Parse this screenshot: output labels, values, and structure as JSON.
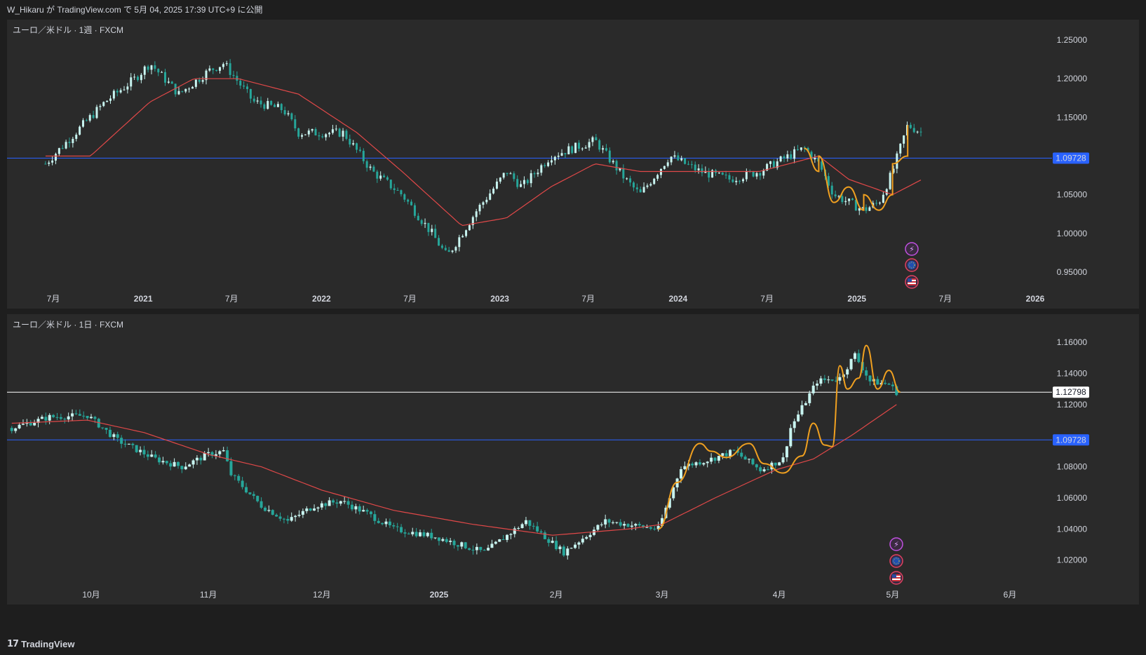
{
  "header": {
    "title": "W_Hikaru が TradingView.com で 5月 04, 2025 17:39 UTC+9 に公開"
  },
  "footer": {
    "logo_mark": "17",
    "logo_text": "TradingView"
  },
  "colors": {
    "up": "#c8f4f0",
    "down": "#26a69a",
    "ma": "#e04848",
    "pattern": "#f0a020",
    "level_line": "#2962ff",
    "price_line": "#ffffff",
    "bg": "#2a2a2a"
  },
  "chart_data": [
    {
      "type": "candlestick",
      "title": "ユーロ／米ドル · 1週 · FXCM",
      "x_ticks": [
        "7月",
        "2021",
        "7月",
        "2022",
        "7月",
        "2023",
        "7月",
        "2024",
        "7月",
        "2025",
        "7月",
        "2026"
      ],
      "y_ticks": [
        "1.25000",
        "1.20000",
        "1.15000",
        "1.05000",
        "1.00000",
        "0.95000"
      ],
      "ylim": [
        0.93,
        1.26
      ],
      "horizontal_level": {
        "value": 1.09728,
        "label": "1.09728"
      },
      "price_path": [
        [
          "2020-06",
          1.09
        ],
        [
          "2020-08",
          1.13
        ],
        [
          "2020-10",
          1.17
        ],
        [
          "2020-12",
          1.2
        ],
        [
          "2021-01",
          1.22
        ],
        [
          "2021-03",
          1.18
        ],
        [
          "2021-05",
          1.21
        ],
        [
          "2021-06",
          1.22
        ],
        [
          "2021-08",
          1.17
        ],
        [
          "2021-10",
          1.16
        ],
        [
          "2021-11",
          1.13
        ],
        [
          "2022-02",
          1.13
        ],
        [
          "2022-04",
          1.08
        ],
        [
          "2022-06",
          1.05
        ],
        [
          "2022-08",
          1.0
        ],
        [
          "2022-09",
          0.97
        ],
        [
          "2022-11",
          1.03
        ],
        [
          "2023-01",
          1.08
        ],
        [
          "2023-02",
          1.06
        ],
        [
          "2023-04",
          1.1
        ],
        [
          "2023-07",
          1.12
        ],
        [
          "2023-09",
          1.07
        ],
        [
          "2023-10",
          1.05
        ],
        [
          "2023-12",
          1.1
        ],
        [
          "2024-02",
          1.08
        ],
        [
          "2024-04",
          1.07
        ],
        [
          "2024-06",
          1.08
        ],
        [
          "2024-08",
          1.1
        ],
        [
          "2024-09",
          1.11
        ],
        [
          "2024-10",
          1.09
        ],
        [
          "2024-11",
          1.05
        ],
        [
          "2025-01",
          1.03
        ],
        [
          "2025-02",
          1.04
        ],
        [
          "2025-03",
          1.08
        ],
        [
          "2025-04",
          1.14
        ],
        [
          "2025-05",
          1.13
        ]
      ],
      "ma_path": [
        [
          "2020-06",
          1.1
        ],
        [
          "2020-09",
          1.1
        ],
        [
          "2021-01",
          1.17
        ],
        [
          "2021-04",
          1.2
        ],
        [
          "2021-07",
          1.2
        ],
        [
          "2021-11",
          1.18
        ],
        [
          "2022-03",
          1.13
        ],
        [
          "2022-06",
          1.08
        ],
        [
          "2022-10",
          1.01
        ],
        [
          "2023-01",
          1.02
        ],
        [
          "2023-04",
          1.06
        ],
        [
          "2023-07",
          1.09
        ],
        [
          "2023-10",
          1.08
        ],
        [
          "2024-02",
          1.08
        ],
        [
          "2024-06",
          1.08
        ],
        [
          "2024-10",
          1.1
        ],
        [
          "2024-12",
          1.07
        ],
        [
          "2025-03",
          1.05
        ],
        [
          "2025-05",
          1.07
        ]
      ],
      "pattern_path": [
        [
          "2024-09",
          1.11
        ],
        [
          "2024-10",
          1.08
        ],
        [
          "2024-10",
          1.1
        ],
        [
          "2024-11",
          1.04
        ],
        [
          "2024-12",
          1.06
        ],
        [
          "2025-01",
          1.03
        ],
        [
          "2025-01",
          1.05
        ],
        [
          "2025-02",
          1.03
        ],
        [
          "2025-03",
          1.05
        ],
        [
          "2025-03",
          1.09
        ],
        [
          "2025-04",
          1.1
        ],
        [
          "2025-04",
          1.14
        ]
      ]
    },
    {
      "type": "candlestick",
      "title": "ユーロ／米ドル · 1日 · FXCM",
      "x_ticks": [
        "10月",
        "11月",
        "12月",
        "2025",
        "2月",
        "3月",
        "4月",
        "5月",
        "6月"
      ],
      "y_ticks": [
        "1.16000",
        "1.14000",
        "1.12000",
        "1.08000",
        "1.06000",
        "1.04000",
        "1.02000"
      ],
      "ylim": [
        1.005,
        1.17
      ],
      "horizontal_level": {
        "value": 1.09728,
        "label": "1.09728"
      },
      "current_price": {
        "value": 1.12798,
        "label": "1.12798"
      },
      "price_path": [
        [
          "2024-09-10",
          1.105
        ],
        [
          "2024-09-20",
          1.112
        ],
        [
          "2024-09-30",
          1.113
        ],
        [
          "2024-10-08",
          1.097
        ],
        [
          "2024-10-18",
          1.085
        ],
        [
          "2024-10-25",
          1.08
        ],
        [
          "2024-11-01",
          1.088
        ],
        [
          "2024-11-05",
          1.09
        ],
        [
          "2024-11-07",
          1.075
        ],
        [
          "2024-11-15",
          1.055
        ],
        [
          "2024-11-22",
          1.045
        ],
        [
          "2024-11-29",
          1.055
        ],
        [
          "2024-12-06",
          1.058
        ],
        [
          "2024-12-13",
          1.05
        ],
        [
          "2024-12-20",
          1.04
        ],
        [
          "2024-12-31",
          1.035
        ],
        [
          "2025-01-13",
          1.025
        ],
        [
          "2025-01-24",
          1.045
        ],
        [
          "2025-02-03",
          1.025
        ],
        [
          "2025-02-14",
          1.045
        ],
        [
          "2025-02-28",
          1.04
        ],
        [
          "2025-03-06",
          1.08
        ],
        [
          "2025-03-14",
          1.085
        ],
        [
          "2025-03-20",
          1.09
        ],
        [
          "2025-03-27",
          1.078
        ],
        [
          "2025-04-02",
          1.085
        ],
        [
          "2025-04-04",
          1.105
        ],
        [
          "2025-04-11",
          1.135
        ],
        [
          "2025-04-17",
          1.137
        ],
        [
          "2025-04-21",
          1.152
        ],
        [
          "2025-04-25",
          1.135
        ],
        [
          "2025-04-30",
          1.133
        ],
        [
          "2025-05-02",
          1.128
        ]
      ],
      "ma_path": [
        [
          "2024-09-10",
          1.108
        ],
        [
          "2024-09-30",
          1.11
        ],
        [
          "2024-10-15",
          1.102
        ],
        [
          "2024-11-01",
          1.088
        ],
        [
          "2024-11-15",
          1.08
        ],
        [
          "2024-12-01",
          1.065
        ],
        [
          "2024-12-20",
          1.052
        ],
        [
          "2025-01-10",
          1.043
        ],
        [
          "2025-01-31",
          1.036
        ],
        [
          "2025-02-20",
          1.04
        ],
        [
          "2025-03-01",
          1.043
        ],
        [
          "2025-03-15",
          1.06
        ],
        [
          "2025-03-31",
          1.078
        ],
        [
          "2025-04-10",
          1.085
        ],
        [
          "2025-04-20",
          1.1
        ],
        [
          "2025-05-02",
          1.12
        ]
      ],
      "pattern_path": [
        [
          "2025-02-28",
          1.04
        ],
        [
          "2025-03-05",
          1.07
        ],
        [
          "2025-03-11",
          1.095
        ],
        [
          "2025-03-14",
          1.09
        ],
        [
          "2025-03-18",
          1.086
        ],
        [
          "2025-03-24",
          1.095
        ],
        [
          "2025-03-28",
          1.082
        ],
        [
          "2025-04-02",
          1.076
        ],
        [
          "2025-04-07",
          1.087
        ],
        [
          "2025-04-10",
          1.108
        ],
        [
          "2025-04-13",
          1.094
        ],
        [
          "2025-04-15",
          1.093
        ],
        [
          "2025-04-17",
          1.145
        ],
        [
          "2025-04-19",
          1.13
        ],
        [
          "2025-04-22",
          1.137
        ],
        [
          "2025-04-24",
          1.158
        ],
        [
          "2025-04-27",
          1.13
        ],
        [
          "2025-04-30",
          1.142
        ],
        [
          "2025-05-03",
          1.128
        ]
      ]
    }
  ],
  "event_icons": [
    {
      "icon": "lightning-icon"
    },
    {
      "icon": "eu-flag-icon"
    },
    {
      "icon": "us-flag-icon"
    }
  ]
}
